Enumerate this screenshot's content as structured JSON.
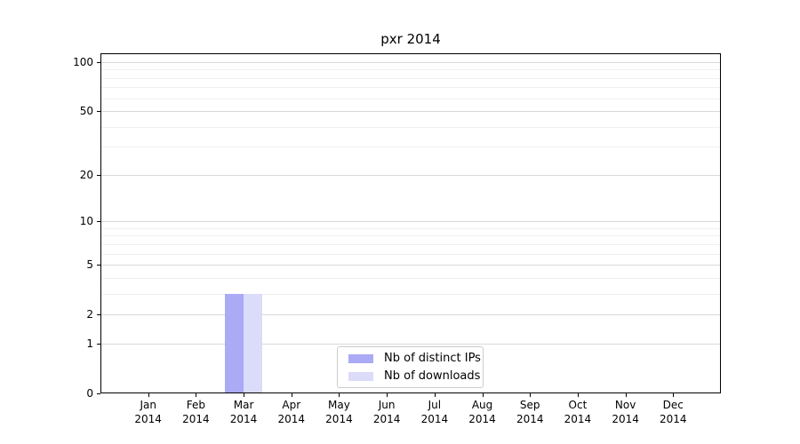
{
  "chart_data": {
    "type": "bar",
    "title": "pxr 2014",
    "xlabel": "",
    "ylabel": "",
    "categories": [
      {
        "month": "Jan",
        "year": "2014"
      },
      {
        "month": "Feb",
        "year": "2014"
      },
      {
        "month": "Mar",
        "year": "2014"
      },
      {
        "month": "Apr",
        "year": "2014"
      },
      {
        "month": "May",
        "year": "2014"
      },
      {
        "month": "Jun",
        "year": "2014"
      },
      {
        "month": "Jul",
        "year": "2014"
      },
      {
        "month": "Aug",
        "year": "2014"
      },
      {
        "month": "Sep",
        "year": "2014"
      },
      {
        "month": "Oct",
        "year": "2014"
      },
      {
        "month": "Nov",
        "year": "2014"
      },
      {
        "month": "Dec",
        "year": "2014"
      }
    ],
    "series": [
      {
        "name": "Nb of distinct IPs",
        "color": "#aaaaf5",
        "values": [
          0,
          0,
          3,
          0,
          0,
          0,
          0,
          0,
          0,
          0,
          0,
          0
        ]
      },
      {
        "name": "Nb of downloads",
        "color": "#dbdbfa",
        "values": [
          0,
          0,
          3,
          0,
          0,
          0,
          0,
          0,
          0,
          0,
          0,
          0
        ]
      }
    ],
    "y_axis": {
      "scale": "log1p",
      "ylim": [
        0,
        113
      ],
      "tick_values": [
        0,
        1,
        2,
        5,
        10,
        20,
        50,
        100
      ],
      "minor_gridline_values": [
        3,
        4,
        6,
        7,
        8,
        9,
        30,
        40,
        60,
        70,
        80,
        90
      ],
      "grid": true
    },
    "legend": {
      "position": "inside-bottom-center",
      "entries": [
        "Nb of distinct IPs",
        "Nb of downloads"
      ]
    }
  },
  "colors": {
    "background": "#ffffff",
    "spine": "#000000",
    "major_grid": "#d9d9d9",
    "minor_grid": "#f0f0f0",
    "legend_border": "#cccccc",
    "text": "#000000"
  }
}
